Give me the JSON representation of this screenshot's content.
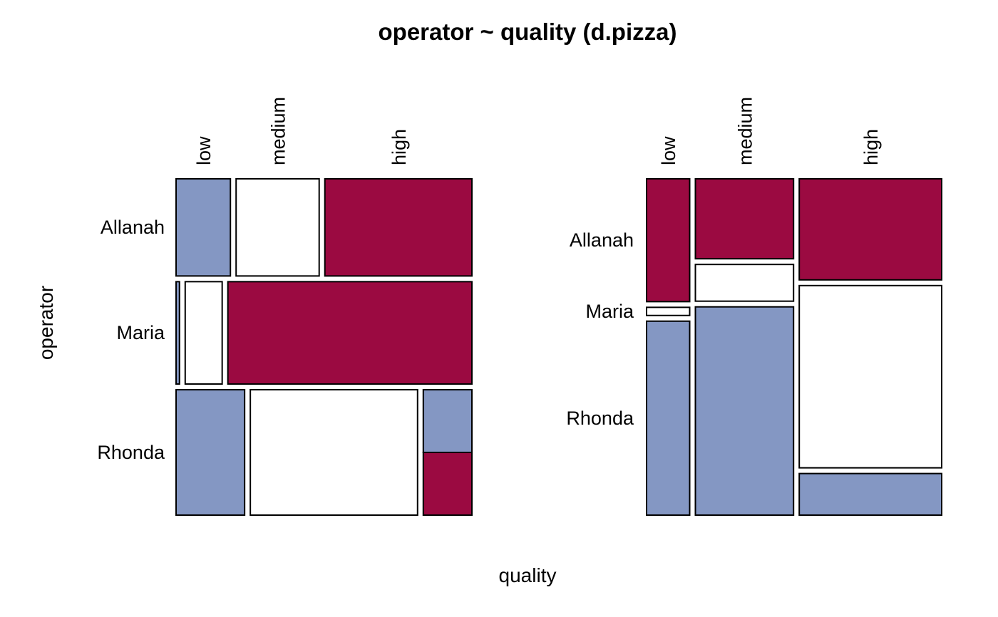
{
  "chart_data": {
    "type": "mosaic",
    "title": "operator ~ quality (d.pizza)",
    "xlabel": "quality",
    "ylabel": "operator",
    "colors": {
      "high": "#9B0A41",
      "neutral": "#FFFFFF",
      "low": "#8497C3"
    },
    "panels": [
      {
        "name": "row-conditional",
        "row_categories": [
          "Allanah",
          "Maria",
          "Rhonda"
        ],
        "column_categories": [
          "low",
          "medium",
          "high"
        ],
        "row_share": [
          0.299,
          0.315,
          0.386
        ],
        "cell_share": [
          [
            0.191,
            0.292,
            0.517
          ],
          [
            0.012,
            0.13,
            0.858
          ],
          [
            0.241,
            0.588,
            0.171
          ]
        ],
        "cell_shading": [
          [
            "low",
            "neutral",
            "high"
          ],
          [
            "low",
            "neutral",
            "high"
          ],
          [
            "low",
            "neutral",
            "low-high-mix"
          ]
        ]
      },
      {
        "name": "column-conditional",
        "row_categories": [
          "Allanah",
          "Maria",
          "Rhonda"
        ],
        "column_categories": [
          "low",
          "medium",
          "high"
        ],
        "column_share": [
          0.152,
          0.346,
          0.502
        ],
        "cell_share": [
          [
            0.378,
            0.246,
            0.311
          ],
          [
            0.025,
            0.113,
            0.561
          ],
          [
            0.597,
            0.641,
            0.128
          ]
        ],
        "cell_shading": [
          [
            "high",
            "high",
            "high"
          ],
          [
            "neutral",
            "neutral",
            "neutral"
          ],
          [
            "low",
            "low",
            "low"
          ]
        ]
      }
    ]
  }
}
